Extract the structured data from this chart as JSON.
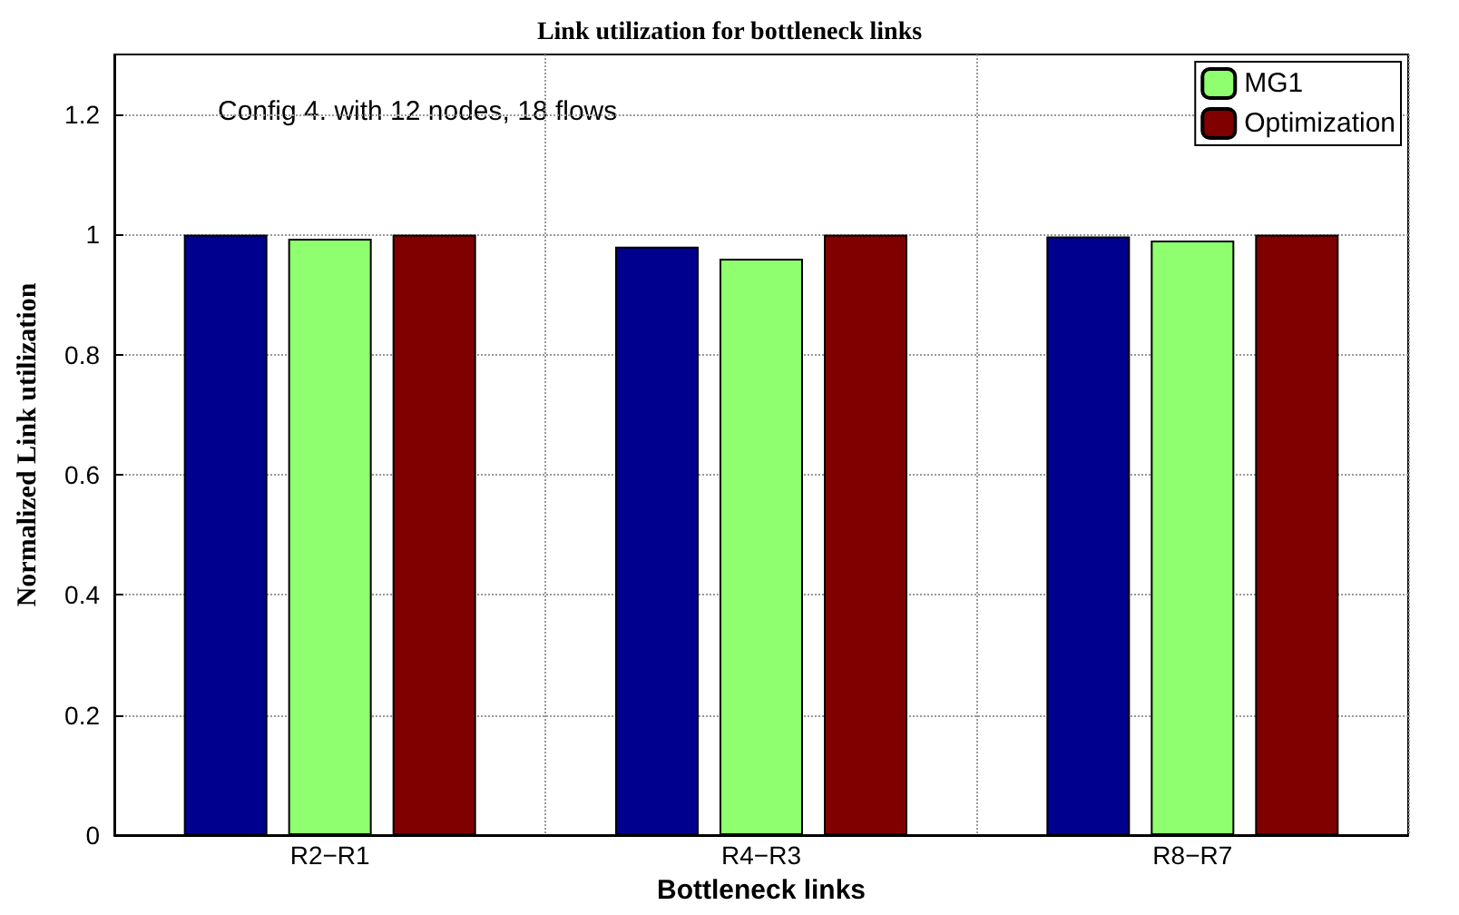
{
  "chart_data": {
    "type": "bar",
    "title": "Link utilization for bottleneck links",
    "xlabel": "Bottleneck links",
    "ylabel": "Normalized Link utilization",
    "annotations": [
      "Config 4. with 12 nodes, 18 flows"
    ],
    "categories": [
      "R2−R1",
      "R4−R3",
      "R8−R7"
    ],
    "series": [
      {
        "color": "#00008f",
        "values": [
          1.0,
          0.98,
          0.997
        ]
      },
      {
        "name": "MG1",
        "color": "#8fff6f",
        "values": [
          0.993,
          0.96,
          0.99
        ]
      },
      {
        "name": "Optimization",
        "color": "#800000",
        "values": [
          1.0,
          1.0,
          1.0
        ]
      }
    ],
    "ylim": [
      0,
      1.3
    ],
    "yticks": [
      0,
      0.2,
      0.4,
      0.6,
      0.8,
      1,
      1.2
    ],
    "grid": true,
    "legend": "top right"
  }
}
